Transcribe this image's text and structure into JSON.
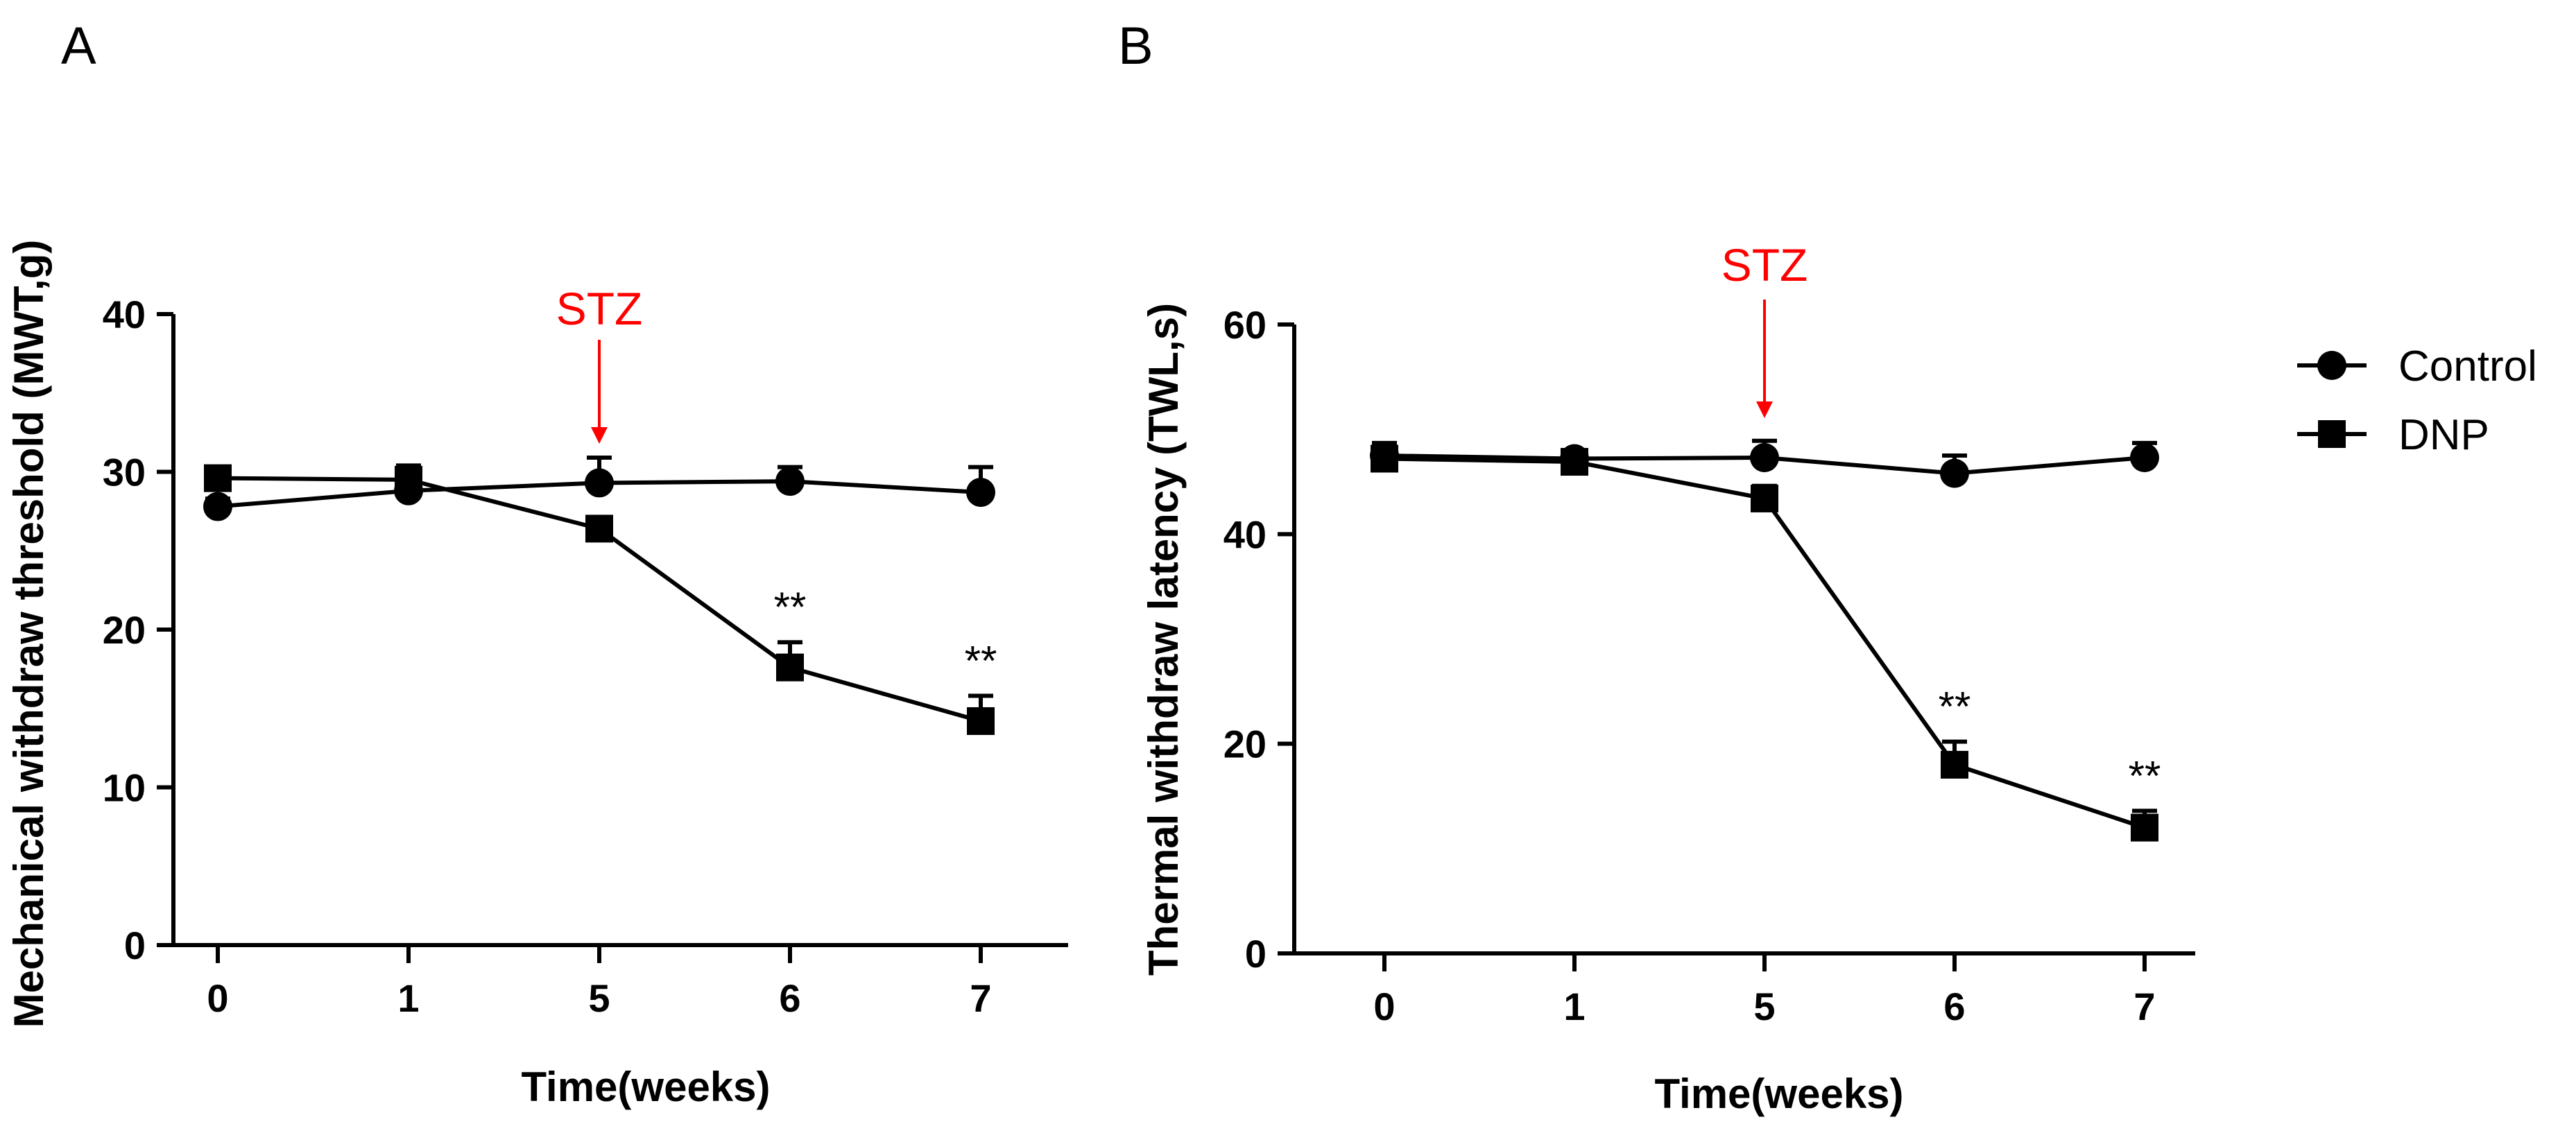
{
  "colors": {
    "line": "#000000",
    "annotation": "#ff0000",
    "background": "#ffffff"
  },
  "legend": {
    "items": [
      {
        "label": "Control",
        "marker": "circle-icon"
      },
      {
        "label": "DNP",
        "marker": "square-icon"
      }
    ]
  },
  "chart_data": [
    {
      "type": "line",
      "panel": "A",
      "title": "",
      "xlabel": "Time(weeks)",
      "ylabel": "Mechanical withdraw threshold (MWT,g)",
      "categories": [
        "0",
        "1",
        "5",
        "6",
        "7"
      ],
      "ylim": [
        0,
        40
      ],
      "yticks": [
        "0",
        "10",
        "20",
        "30",
        "40"
      ],
      "series": [
        {
          "name": "Control",
          "marker": "circle",
          "values": [
            27.8,
            28.8,
            29.3,
            29.4,
            28.7
          ],
          "errors": [
            0.5,
            1.2,
            1.6,
            0.9,
            1.6
          ]
        },
        {
          "name": "DNP",
          "marker": "square",
          "values": [
            29.6,
            29.5,
            26.4,
            17.6,
            14.2
          ],
          "errors": [
            0.5,
            0.9,
            0.6,
            1.6,
            1.6
          ]
        }
      ],
      "annotations": [
        {
          "text": "STZ",
          "x": "5",
          "kind": "arrow",
          "color": "#ff0000"
        },
        {
          "text": "**",
          "x": "6",
          "series": "DNP"
        },
        {
          "text": "**",
          "x": "7",
          "series": "DNP"
        }
      ]
    },
    {
      "type": "line",
      "panel": "B",
      "title": "",
      "xlabel": "Time(weeks)",
      "ylabel": "Thermal withdraw latency (TWL,s)",
      "categories": [
        "0",
        "1",
        "5",
        "6",
        "7"
      ],
      "ylim": [
        0,
        60
      ],
      "yticks": [
        "0",
        "20",
        "40",
        "60"
      ],
      "series": [
        {
          "name": "Control",
          "marker": "circle",
          "values": [
            47.5,
            47.2,
            47.3,
            45.8,
            47.3
          ],
          "errors": [
            1.2,
            0.8,
            1.6,
            1.7,
            1.4
          ]
        },
        {
          "name": "DNP",
          "marker": "square",
          "values": [
            47.2,
            46.9,
            43.4,
            18.0,
            12.0
          ],
          "errors": [
            1.2,
            0.8,
            1.2,
            2.2,
            1.6
          ]
        }
      ],
      "annotations": [
        {
          "text": "STZ",
          "x": "5",
          "kind": "arrow",
          "color": "#ff0000"
        },
        {
          "text": "**",
          "x": "6",
          "series": "DNP"
        },
        {
          "text": "**",
          "x": "7",
          "series": "DNP"
        }
      ]
    }
  ]
}
